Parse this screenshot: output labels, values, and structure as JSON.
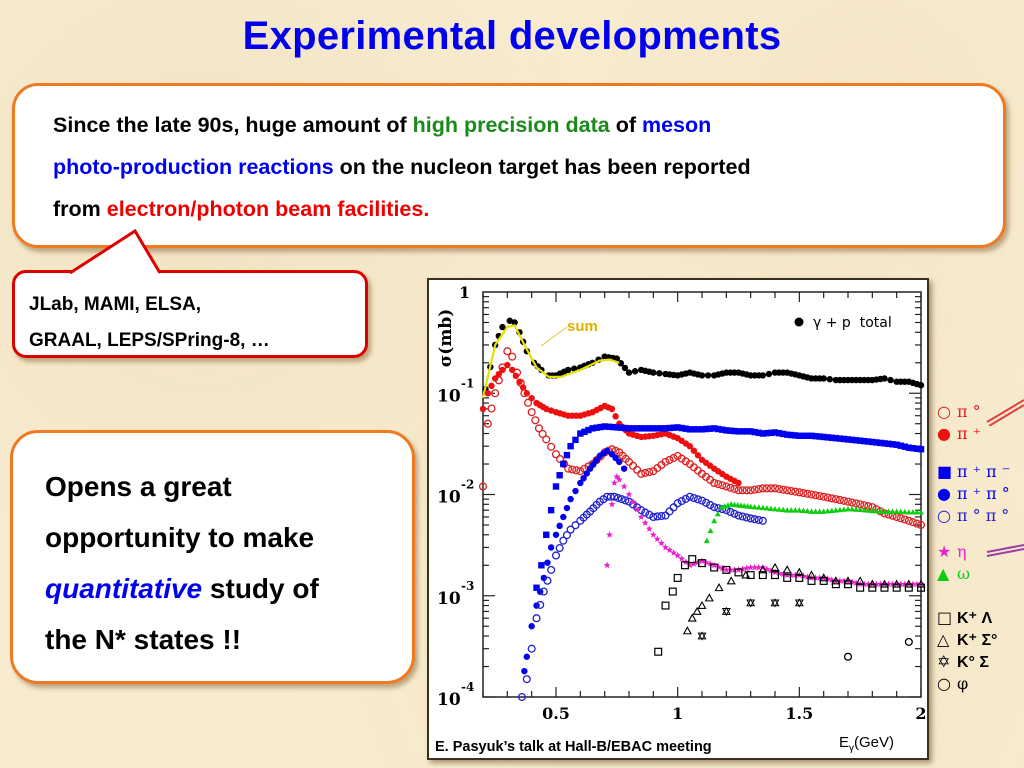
{
  "slide": {
    "title": "Experimental developments",
    "intro": {
      "seg1": "Since the late 90s, huge amount of ",
      "seg2": "high precision data",
      "seg3": " of ",
      "seg4": "meson",
      "seg5": "photo-production reactions",
      "seg6": " on the nucleon target has been reported",
      "seg7": "from ",
      "seg8": "electron/photon beam facilities."
    },
    "facilities": {
      "line1": "JLab, MAMI, ELSA,",
      "line2": "GRAAL, LEPS/SPring-8, …"
    },
    "opportunity": {
      "line1": "Opens a great",
      "line2": "opportunity to make",
      "line3_italic": "quantitative",
      "line3_rest": " study of",
      "line4": "the N* states !!"
    },
    "credit": "E. Pasyuk’s talk at Hall-B/EBAC meeting",
    "colors": {
      "title": "#0000ee",
      "accent_green": "#1a8a1a",
      "accent_blue": "#0000ee",
      "accent_red": "#ee0000",
      "box_border_orange": "#ee7a22",
      "box_border_red": "#dd0000"
    }
  },
  "chart_data": {
    "type": "scatter",
    "title": "",
    "xlabel": "Eγ(GeV)",
    "ylabel": "σ(mb)",
    "xscale": "linear",
    "yscale": "log",
    "xlim": [
      0.2,
      2.0
    ],
    "ylim": [
      0.0001,
      1
    ],
    "xticks": [
      0.5,
      1,
      1.5,
      2
    ],
    "xtick_labels": [
      "0.5",
      "1",
      "1.5",
      "2"
    ],
    "yticks": [
      1,
      0.1,
      0.01,
      0.001,
      0.0001
    ],
    "ytick_labels": [
      "1",
      "10^-1",
      "10^-2",
      "10^-3",
      "10^-4"
    ],
    "grid": false,
    "annotation": "sum",
    "inset_legend": "γ + p  total",
    "inset_legend_position": "top-right",
    "legend_position": "right-outside",
    "series": [
      {
        "name": "γ + p total",
        "label": "γ + p  total",
        "marker": "filled-circle",
        "color": "#000000",
        "x": [
          0.21,
          0.25,
          0.28,
          0.31,
          0.33,
          0.35,
          0.38,
          0.41,
          0.44,
          0.47,
          0.5,
          0.55,
          0.6,
          0.65,
          0.7,
          0.75,
          0.8,
          0.85,
          0.9,
          0.95,
          1.0,
          1.05,
          1.1,
          1.15,
          1.2,
          1.25,
          1.3,
          1.35,
          1.4,
          1.45,
          1.5,
          1.55,
          1.6,
          1.65,
          1.7,
          1.75,
          1.8,
          1.85,
          1.9,
          1.95,
          2.0
        ],
        "y": [
          0.11,
          0.3,
          0.45,
          0.52,
          0.5,
          0.4,
          0.26,
          0.2,
          0.17,
          0.15,
          0.15,
          0.17,
          0.18,
          0.2,
          0.23,
          0.22,
          0.16,
          0.17,
          0.16,
          0.155,
          0.15,
          0.16,
          0.15,
          0.15,
          0.16,
          0.16,
          0.15,
          0.15,
          0.16,
          0.16,
          0.15,
          0.14,
          0.14,
          0.135,
          0.135,
          0.135,
          0.135,
          0.14,
          0.13,
          0.13,
          0.12
        ]
      },
      {
        "name": "sum",
        "label": "sum",
        "marker": "line",
        "color": "#e6e000",
        "x": [
          0.2,
          0.25,
          0.3,
          0.33,
          0.37,
          0.42,
          0.47,
          0.52,
          0.6,
          0.68,
          0.72,
          0.76
        ],
        "y": [
          0.09,
          0.3,
          0.45,
          0.47,
          0.3,
          0.18,
          0.145,
          0.145,
          0.17,
          0.21,
          0.215,
          0.2
        ]
      },
      {
        "name": "π⁰ p",
        "label": "π °",
        "marker": "open-circle",
        "color": "#dd2020",
        "x": [
          0.2,
          0.22,
          0.25,
          0.28,
          0.3,
          0.32,
          0.34,
          0.37,
          0.4,
          0.43,
          0.46,
          0.5,
          0.55,
          0.6,
          0.65,
          0.7,
          0.73,
          0.76,
          0.8,
          0.85,
          0.9,
          0.95,
          1.0,
          1.05,
          1.1,
          1.15,
          1.2,
          1.25,
          1.3,
          1.35,
          1.4,
          1.45,
          1.5,
          1.55,
          1.6,
          1.65,
          1.7,
          1.75,
          1.8,
          1.85,
          1.9,
          1.95,
          2.0
        ],
        "y": [
          0.012,
          0.05,
          0.1,
          0.18,
          0.26,
          0.23,
          0.16,
          0.1,
          0.065,
          0.045,
          0.035,
          0.025,
          0.018,
          0.017,
          0.02,
          0.026,
          0.028,
          0.026,
          0.021,
          0.016,
          0.017,
          0.021,
          0.024,
          0.02,
          0.016,
          0.013,
          0.012,
          0.011,
          0.011,
          0.0115,
          0.0115,
          0.011,
          0.0105,
          0.01,
          0.0095,
          0.009,
          0.0085,
          0.008,
          0.0075,
          0.0065,
          0.006,
          0.0055,
          0.005
        ]
      },
      {
        "name": "π⁺ n",
        "label": "π ⁺",
        "marker": "filled-circle",
        "color": "#ee1010",
        "x": [
          0.2,
          0.22,
          0.25,
          0.28,
          0.3,
          0.32,
          0.35,
          0.38,
          0.42,
          0.46,
          0.5,
          0.55,
          0.6,
          0.65,
          0.7,
          0.73,
          0.76,
          0.8,
          0.85,
          0.9,
          0.95,
          1.0,
          1.05,
          1.1,
          1.15,
          1.2,
          1.25
        ],
        "y": [
          0.07,
          0.1,
          0.14,
          0.17,
          0.19,
          0.17,
          0.13,
          0.1,
          0.08,
          0.07,
          0.065,
          0.06,
          0.06,
          0.065,
          0.075,
          0.07,
          0.05,
          0.04,
          0.037,
          0.038,
          0.04,
          0.036,
          0.03,
          0.022,
          0.018,
          0.015,
          0.013
        ]
      },
      {
        "name": "π⁺π⁻ p",
        "label": "π ⁺ π ⁻",
        "marker": "filled-square",
        "color": "#0000ee",
        "x": [
          0.42,
          0.44,
          0.46,
          0.48,
          0.5,
          0.53,
          0.56,
          0.6,
          0.65,
          0.7,
          0.75,
          0.8,
          0.85,
          0.9,
          0.95,
          1.0,
          1.05,
          1.1,
          1.15,
          1.2,
          1.25,
          1.3,
          1.35,
          1.4,
          1.45,
          1.5,
          1.55,
          1.6,
          1.65,
          1.7,
          1.75,
          1.8,
          1.85,
          1.9,
          1.95,
          2.0
        ],
        "y": [
          0.0012,
          0.002,
          0.004,
          0.007,
          0.012,
          0.02,
          0.03,
          0.04,
          0.045,
          0.047,
          0.046,
          0.045,
          0.045,
          0.045,
          0.045,
          0.046,
          0.044,
          0.044,
          0.045,
          0.043,
          0.042,
          0.042,
          0.04,
          0.041,
          0.039,
          0.038,
          0.038,
          0.037,
          0.036,
          0.035,
          0.034,
          0.033,
          0.032,
          0.031,
          0.029,
          0.028
        ]
      },
      {
        "name": "π⁺π⁰ n",
        "label": "π ⁺ π °",
        "marker": "filled-circle",
        "color": "#0000ee",
        "x": [
          0.37,
          0.38,
          0.4,
          0.42,
          0.45,
          0.48,
          0.5,
          0.53,
          0.56,
          0.6,
          0.64,
          0.68,
          0.71,
          0.73,
          0.76,
          0.78
        ],
        "y": [
          0.00018,
          0.00025,
          0.0005,
          0.0008,
          0.0015,
          0.003,
          0.004,
          0.006,
          0.009,
          0.013,
          0.018,
          0.024,
          0.027,
          0.025,
          0.021,
          0.018
        ]
      },
      {
        "name": "π⁰π⁰ p",
        "label": "π ° π °",
        "marker": "open-circle",
        "color": "#2020cc",
        "x": [
          0.36,
          0.38,
          0.4,
          0.42,
          0.45,
          0.48,
          0.5,
          0.53,
          0.56,
          0.6,
          0.64,
          0.68,
          0.71,
          0.74,
          0.77,
          0.8,
          0.85,
          0.9,
          0.95,
          1.0,
          1.05,
          1.1,
          1.15,
          1.2,
          1.25,
          1.3,
          1.35
        ],
        "y": [
          0.0001,
          0.00015,
          0.0003,
          0.0006,
          0.0011,
          0.0018,
          0.0025,
          0.0035,
          0.0045,
          0.0055,
          0.0068,
          0.0085,
          0.0095,
          0.0095,
          0.009,
          0.0085,
          0.007,
          0.006,
          0.0062,
          0.0082,
          0.0095,
          0.0087,
          0.0075,
          0.007,
          0.0062,
          0.0058,
          0.0055
        ]
      },
      {
        "name": "η p",
        "label": "η",
        "marker": "star",
        "color": "#ee20cc",
        "x": [
          0.71,
          0.72,
          0.73,
          0.74,
          0.75,
          0.76,
          0.78,
          0.8,
          0.85,
          0.9,
          0.95,
          1.0,
          1.05,
          1.1,
          1.15,
          1.2,
          1.25,
          1.3,
          1.35,
          1.4,
          1.45,
          1.5,
          1.55,
          1.6,
          1.65,
          1.7,
          1.75,
          1.8,
          1.85,
          1.9,
          1.95,
          2.0
        ],
        "y": [
          0.002,
          0.004,
          0.008,
          0.013,
          0.015,
          0.014,
          0.012,
          0.01,
          0.006,
          0.004,
          0.003,
          0.0025,
          0.002,
          0.0022,
          0.002,
          0.0018,
          0.0018,
          0.0019,
          0.0019,
          0.0017,
          0.0016,
          0.0016,
          0.0015,
          0.0015,
          0.0014,
          0.0014,
          0.0013,
          0.0013,
          0.0013,
          0.0013,
          0.0013,
          0.0013
        ]
      },
      {
        "name": "ω p",
        "label": "ω",
        "marker": "filled-triangle",
        "color": "#10cc10",
        "x": [
          1.12,
          1.15,
          1.18,
          1.22,
          1.26,
          1.3,
          1.35,
          1.4,
          1.45,
          1.5,
          1.55,
          1.6,
          1.65,
          1.7,
          1.75,
          1.8,
          1.85,
          1.9,
          1.95,
          2.0
        ],
        "y": [
          0.0035,
          0.0055,
          0.0075,
          0.008,
          0.0078,
          0.0076,
          0.0074,
          0.0072,
          0.007,
          0.007,
          0.0068,
          0.0068,
          0.007,
          0.0072,
          0.0071,
          0.0069,
          0.0068,
          0.0068,
          0.0067,
          0.0067
        ]
      },
      {
        "name": "K⁺ Λ",
        "label": "K⁺ Λ",
        "marker": "open-square",
        "color": "#000000",
        "x": [
          0.92,
          0.95,
          0.98,
          1.0,
          1.03,
          1.06,
          1.1,
          1.15,
          1.2,
          1.25,
          1.3,
          1.35,
          1.4,
          1.45,
          1.5,
          1.55,
          1.6,
          1.65,
          1.7,
          1.75,
          1.8,
          1.85,
          1.9,
          1.95,
          2.0
        ],
        "y": [
          0.00028,
          0.0008,
          0.0011,
          0.0015,
          0.002,
          0.0023,
          0.0021,
          0.0019,
          0.0018,
          0.0017,
          0.0016,
          0.0016,
          0.0016,
          0.0015,
          0.0015,
          0.0014,
          0.0014,
          0.0013,
          0.0013,
          0.0012,
          0.0012,
          0.0012,
          0.0012,
          0.0012,
          0.0012
        ]
      },
      {
        "name": "K⁺ Σ⁰",
        "label": "K⁺ Σ°",
        "marker": "open-triangle",
        "color": "#000000",
        "x": [
          1.04,
          1.06,
          1.08,
          1.1,
          1.13,
          1.17,
          1.22,
          1.28,
          1.35,
          1.4,
          1.45,
          1.5,
          1.55,
          1.6,
          1.65,
          1.7,
          1.75,
          1.8,
          1.85,
          1.9,
          1.95,
          2.0
        ],
        "y": [
          0.00045,
          0.0006,
          0.0007,
          0.0008,
          0.00095,
          0.0012,
          0.0014,
          0.0016,
          0.0018,
          0.0019,
          0.0018,
          0.0017,
          0.0016,
          0.0015,
          0.0014,
          0.0014,
          0.0014,
          0.0013,
          0.0013,
          0.0013,
          0.0013,
          0.0013
        ]
      },
      {
        "name": "K⁰ Σ⁺",
        "label": "K° Σ",
        "marker": "hexagram",
        "color": "#000000",
        "x": [
          1.1,
          1.2,
          1.3,
          1.4,
          1.5
        ],
        "y": [
          0.0004,
          0.0007,
          0.00085,
          0.00085,
          0.00085
        ]
      },
      {
        "name": "φ p",
        "label": "φ",
        "marker": "open-circle",
        "color": "#000000",
        "x": [
          1.7,
          1.95
        ],
        "y": [
          0.00025,
          0.00035
        ]
      }
    ]
  }
}
